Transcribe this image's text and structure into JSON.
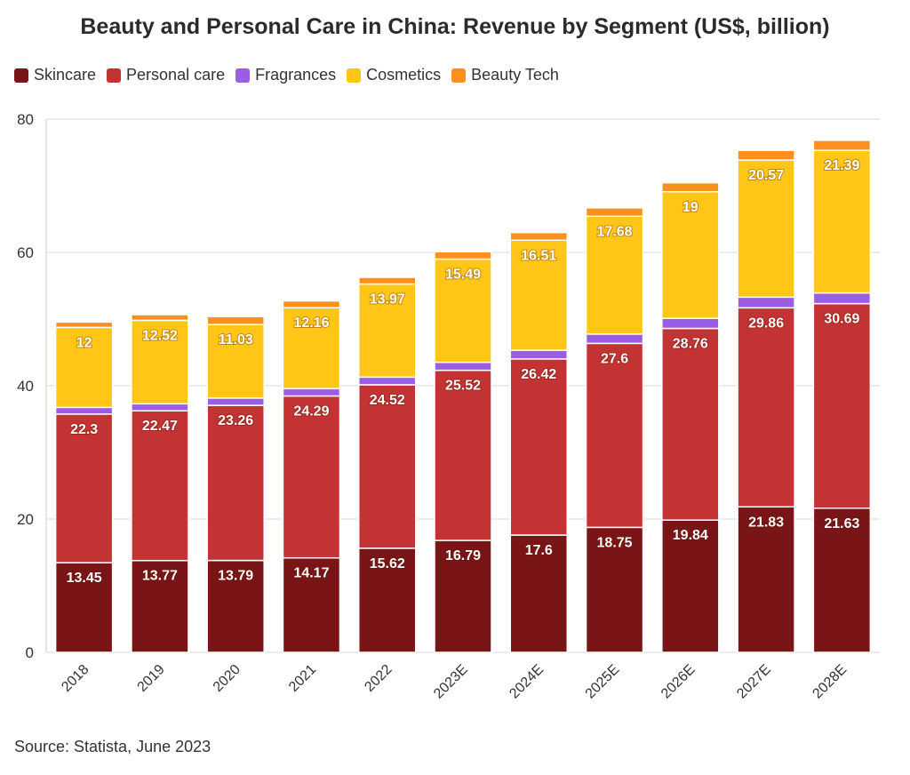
{
  "chart_data": {
    "type": "bar",
    "stacked": true,
    "title": "Beauty and Personal Care in China: Revenue by Segment (US$, billion)",
    "source": "Source: Statista, June 2023",
    "legend_position": "top-left",
    "grid": true,
    "ylim": [
      0,
      80
    ],
    "yticks": [
      0,
      20,
      40,
      60,
      80
    ],
    "categories": [
      "2018",
      "2019",
      "2020",
      "2021",
      "2022",
      "2023E",
      "2024E",
      "2025E",
      "2026E",
      "2027E",
      "2028E"
    ],
    "series": [
      {
        "name": "Skincare",
        "color": "#7a1517",
        "labeled": true,
        "values": [
          13.45,
          13.77,
          13.79,
          14.17,
          15.62,
          16.79,
          17.6,
          18.75,
          19.84,
          21.83,
          21.63
        ]
      },
      {
        "name": "Personal care",
        "color": "#c43333",
        "labeled": true,
        "values": [
          22.3,
          22.47,
          23.26,
          24.29,
          24.52,
          25.52,
          26.42,
          27.6,
          28.76,
          29.86,
          30.69
        ]
      },
      {
        "name": "Fragrances",
        "color": "#9b5ee3",
        "labeled": false,
        "values": [
          1.0,
          1.05,
          1.1,
          1.1,
          1.15,
          1.2,
          1.3,
          1.4,
          1.5,
          1.6,
          1.6
        ]
      },
      {
        "name": "Cosmetics",
        "color": "#ffc617",
        "labeled": true,
        "values": [
          12,
          12.52,
          11.03,
          12.16,
          13.97,
          15.49,
          16.51,
          17.68,
          19,
          20.57,
          21.39
        ]
      },
      {
        "name": "Beauty Tech",
        "color": "#ff8f1c",
        "labeled": false,
        "values": [
          0.8,
          0.85,
          1.2,
          1.0,
          1.0,
          1.1,
          1.15,
          1.25,
          1.35,
          1.45,
          1.5
        ]
      }
    ]
  }
}
